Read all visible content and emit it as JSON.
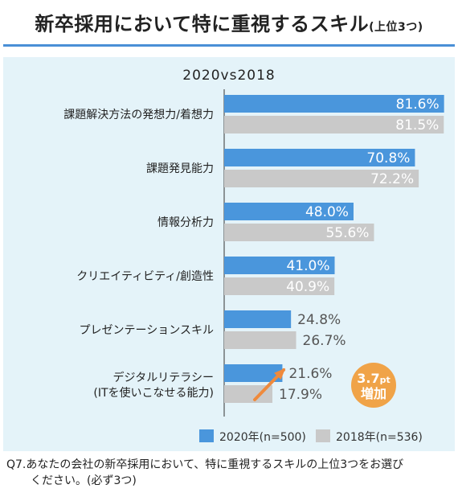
{
  "title": "新卒採用において特に重視するスキル",
  "title_suffix": "(上位3つ)",
  "footnote": {
    "line1": "Q7.あなたの会社の新卒採用において、特に重視するスキルの上位3つをお選び",
    "line2": "ください。(必ず3つ)"
  },
  "colors": {
    "accent": "#4a8fd6",
    "s2020": "#4a96dc",
    "s2018": "#c9c9c9",
    "panel": "#e4f3f9",
    "badge": "#f0a348",
    "arrow": "#ef8a3c"
  },
  "chart_data": {
    "type": "bar",
    "orientation": "horizontal",
    "title": "2020vs2018",
    "categories": [
      "課題解決方法の発想力/着想力",
      "課題発見能力",
      "情報分析力",
      "クリエイティビティ/創造性",
      "プレゼンテーションスキル",
      "デジタルリテラシー"
    ],
    "category_notes": [
      "",
      "",
      "",
      "",
      "",
      "(ITを使いこなせる能力)"
    ],
    "series": [
      {
        "name": "2020年(n=500)",
        "values": [
          81.6,
          70.8,
          48.0,
          41.0,
          24.8,
          21.6
        ]
      },
      {
        "name": "2018年(n=536)",
        "values": [
          81.5,
          72.2,
          55.6,
          40.9,
          26.7,
          17.9
        ]
      }
    ],
    "value_labels": [
      [
        "81.6%",
        "70.8%",
        "48.0%",
        "41.0%",
        "24.8%",
        "21.6%"
      ],
      [
        "81.5%",
        "72.2%",
        "55.6%",
        "40.9%",
        "26.7%",
        "17.9%"
      ]
    ],
    "xlim": [
      0,
      82
    ],
    "legend_position": "bottom-right",
    "annotation": {
      "value": "3.7",
      "unit": "pt",
      "text": "増加",
      "category_index": 5
    }
  }
}
